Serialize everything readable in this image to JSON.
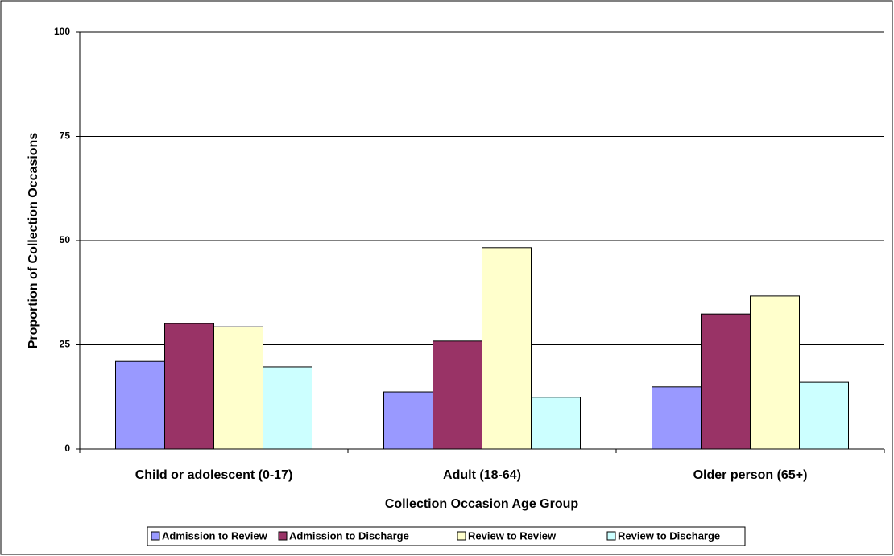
{
  "chart_data": {
    "type": "bar",
    "x_label": "Collection Occasion Age Group",
    "y_label": "Proportion of Collection Occasions",
    "categories": [
      "Child or adolescent (0-17)",
      "Adult (18-64)",
      "Older person (65+)"
    ],
    "series": [
      {
        "name": "Admission to Review",
        "color": "#9999ff",
        "values": [
          21.0,
          13.7,
          14.9
        ]
      },
      {
        "name": "Admission to Discharge",
        "color": "#993366",
        "values": [
          30.1,
          25.9,
          32.4
        ]
      },
      {
        "name": "Review to Review",
        "color": "#ffffcc",
        "values": [
          29.3,
          48.3,
          36.7
        ]
      },
      {
        "name": "Review to Discharge",
        "color": "#ccffff",
        "values": [
          19.7,
          12.4,
          16.0
        ]
      }
    ],
    "ylim": [
      0,
      100
    ],
    "yticks": [
      0,
      25,
      50,
      75,
      100
    ],
    "grid": true,
    "legend": "bottom"
  }
}
